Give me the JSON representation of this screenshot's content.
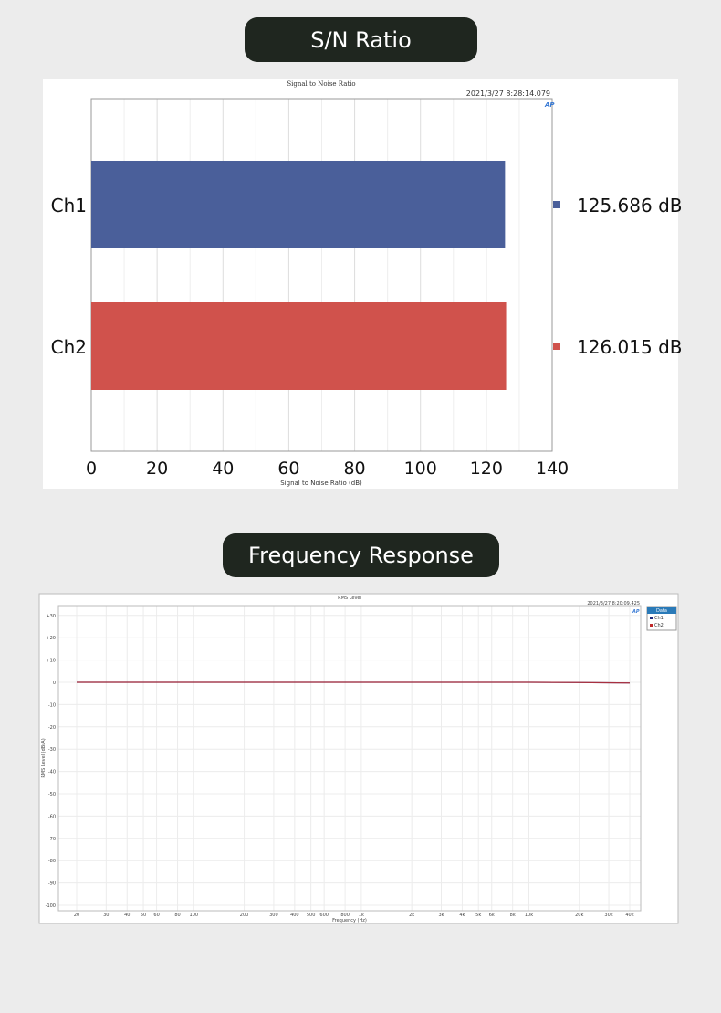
{
  "sections": {
    "sn_heading": "S/N Ratio",
    "fr_heading": "Frequency Response"
  },
  "chart_data": [
    {
      "type": "bar",
      "orientation": "horizontal",
      "title": "Signal to Noise Ratio",
      "timestamp": "2021/3/27 8:28:14.079",
      "xlabel": "Signal to Noise Ratio (dB)",
      "xlim": [
        0,
        140
      ],
      "xticks": [
        "0",
        "20",
        "40",
        "60",
        "80",
        "100",
        "120",
        "140"
      ],
      "grid": true,
      "categories": [
        "Ch1",
        "Ch2"
      ],
      "values": [
        125.686,
        126.015
      ],
      "value_labels": [
        "125.686 dB",
        "126.015 dB"
      ],
      "colors": [
        "#4a5f9a",
        "#d0524c"
      ],
      "logo": "AP"
    },
    {
      "type": "line",
      "title": "RMS Level",
      "timestamp": "2021/3/27 8:20:09.425",
      "xlabel": "Frequency (Hz)",
      "ylabel": "RMS Level (dBrA)",
      "xscale": "log",
      "xlim": [
        20,
        40000
      ],
      "ylim": [
        -100,
        30
      ],
      "grid": true,
      "legend": "right",
      "legend_title": "Data",
      "yticks": [
        "+30",
        "+20",
        "+10",
        "0",
        "-10",
        "-20",
        "-30",
        "-40",
        "-50",
        "-60",
        "-70",
        "-80",
        "-90",
        "-100"
      ],
      "xticks": [
        {
          "v": 20,
          "l": "20"
        },
        {
          "v": 30,
          "l": "30"
        },
        {
          "v": 40,
          "l": "40"
        },
        {
          "v": 50,
          "l": "50"
        },
        {
          "v": 60,
          "l": "60"
        },
        {
          "v": 80,
          "l": "80"
        },
        {
          "v": 100,
          "l": "100"
        },
        {
          "v": 200,
          "l": "200"
        },
        {
          "v": 300,
          "l": "300"
        },
        {
          "v": 400,
          "l": "400"
        },
        {
          "v": 500,
          "l": "500"
        },
        {
          "v": 600,
          "l": "600"
        },
        {
          "v": 800,
          "l": "800"
        },
        {
          "v": 1000,
          "l": "1k"
        },
        {
          "v": 2000,
          "l": "2k"
        },
        {
          "v": 3000,
          "l": "3k"
        },
        {
          "v": 4000,
          "l": "4k"
        },
        {
          "v": 5000,
          "l": "5k"
        },
        {
          "v": 6000,
          "l": "6k"
        },
        {
          "v": 8000,
          "l": "8k"
        },
        {
          "v": 10000,
          "l": "10k"
        },
        {
          "v": 20000,
          "l": "20k"
        },
        {
          "v": 30000,
          "l": "30k"
        },
        {
          "v": 40000,
          "l": "40k"
        }
      ],
      "series": [
        {
          "name": "Ch1",
          "color": "#1f2a7a",
          "x": [
            20,
            100,
            1000,
            10000,
            20000,
            40000
          ],
          "y": [
            0,
            0,
            0,
            0,
            -0.1,
            -0.3
          ]
        },
        {
          "name": "Ch2",
          "color": "#c0282a",
          "x": [
            20,
            100,
            1000,
            10000,
            20000,
            40000
          ],
          "y": [
            0,
            0,
            0,
            0,
            -0.1,
            -0.3
          ]
        }
      ],
      "logo": "AP"
    }
  ]
}
